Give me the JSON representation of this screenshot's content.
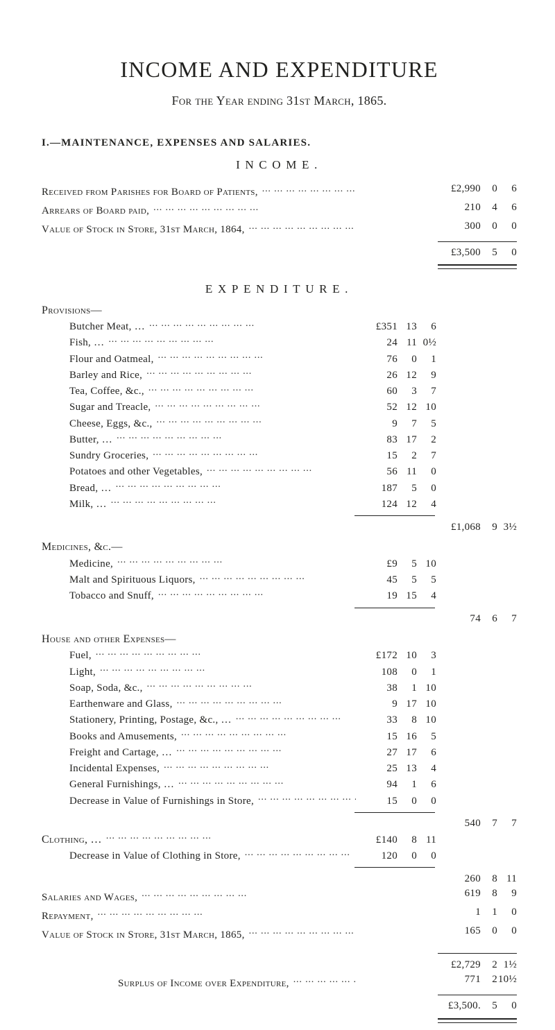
{
  "title": "INCOME AND EXPENDITURE",
  "subtitle": "For the Year ending 31st March, 1865.",
  "section1": "I.—MAINTENANCE, EXPENSES AND SALARIES.",
  "income_head": "INCOME.",
  "expenditure_head": "EXPENDITURE.",
  "income_rows": [
    {
      "label": "Received from Parishes for Board of Patients,",
      "p2": "£2,990",
      "s2": "0",
      "d2": "6"
    },
    {
      "label": "Arrears of Board paid,",
      "p2": "210",
      "s2": "4",
      "d2": "6"
    },
    {
      "label": "Value of Stock in Store, 31st March, 1864,",
      "p2": "300",
      "s2": "0",
      "d2": "0"
    }
  ],
  "income_total": {
    "p2": "£3,500",
    "s2": "5",
    "d2": "0"
  },
  "prov_head": "Provisions—",
  "provisions": [
    {
      "label": "Butcher Meat, …",
      "p1": "£351",
      "s1": "13",
      "d1": "6"
    },
    {
      "label": "Fish, …",
      "p1": "24",
      "s1": "11",
      "d1": "0½"
    },
    {
      "label": "Flour and Oatmeal,",
      "p1": "76",
      "s1": "0",
      "d1": "1"
    },
    {
      "label": "Barley and Rice,",
      "p1": "26",
      "s1": "12",
      "d1": "9"
    },
    {
      "label": "Tea, Coffee, &c.,",
      "p1": "60",
      "s1": "3",
      "d1": "7"
    },
    {
      "label": "Sugar and Treacle,",
      "p1": "52",
      "s1": "12",
      "d1": "10"
    },
    {
      "label": "Cheese, Eggs, &c.,",
      "p1": "9",
      "s1": "7",
      "d1": "5"
    },
    {
      "label": "Butter, …",
      "p1": "83",
      "s1": "17",
      "d1": "2"
    },
    {
      "label": "Sundry Groceries,",
      "p1": "15",
      "s1": "2",
      "d1": "7"
    },
    {
      "label": "Potatoes and other Vegetables,",
      "p1": "56",
      "s1": "11",
      "d1": "0"
    },
    {
      "label": "Bread, …",
      "p1": "187",
      "s1": "5",
      "d1": "0"
    },
    {
      "label": "Milk, …",
      "p1": "124",
      "s1": "12",
      "d1": "4"
    }
  ],
  "provisions_total": {
    "p2": "£1,068",
    "s2": "9",
    "d2": "3½"
  },
  "med_head": "Medicines, &c.—",
  "medicines": [
    {
      "label": "Medicine,",
      "p1": "£9",
      "s1": "5",
      "d1": "10"
    },
    {
      "label": "Malt and Spirituous Liquors,",
      "p1": "45",
      "s1": "5",
      "d1": "5"
    },
    {
      "label": "Tobacco and Snuff,",
      "p1": "19",
      "s1": "15",
      "d1": "4"
    }
  ],
  "medicines_total": {
    "p2": "74",
    "s2": "6",
    "d2": "7"
  },
  "house_head": "House and other Expenses—",
  "house": [
    {
      "label": "Fuel,",
      "p1": "£172",
      "s1": "10",
      "d1": "3"
    },
    {
      "label": "Light,",
      "p1": "108",
      "s1": "0",
      "d1": "1"
    },
    {
      "label": "Soap, Soda, &c.,",
      "p1": "38",
      "s1": "1",
      "d1": "10"
    },
    {
      "label": "Earthenware and Glass,",
      "p1": "9",
      "s1": "17",
      "d1": "10"
    },
    {
      "label": "Stationery, Printing, Postage, &c., …",
      "p1": "33",
      "s1": "8",
      "d1": "10"
    },
    {
      "label": "Books and Amusements,",
      "p1": "15",
      "s1": "16",
      "d1": "5"
    },
    {
      "label": "Freight and Cartage, …",
      "p1": "27",
      "s1": "17",
      "d1": "6"
    },
    {
      "label": "Incidental Expenses,",
      "p1": "25",
      "s1": "13",
      "d1": "4"
    },
    {
      "label": "General Furnishings, …",
      "p1": "94",
      "s1": "1",
      "d1": "6"
    },
    {
      "label": "Decrease in Value of Furnishings in Store,",
      "p1": "15",
      "s1": "0",
      "d1": "0"
    }
  ],
  "house_total": {
    "p2": "540",
    "s2": "7",
    "d2": "7"
  },
  "clothing_head": "Clothing, …",
  "clothing": [
    {
      "label": "",
      "p1": "£140",
      "s1": "8",
      "d1": "11"
    },
    {
      "label": "Decrease in Value of Clothing in Store,",
      "p1": "120",
      "s1": "0",
      "d1": "0"
    }
  ],
  "clothing_total": {
    "p2": "260",
    "s2": "8",
    "d2": "11"
  },
  "tail_rows": [
    {
      "label": "Salaries and Wages,",
      "p2": "619",
      "s2": "8",
      "d2": "9"
    },
    {
      "label": "Repayment,",
      "p2": "1",
      "s2": "1",
      "d2": "0"
    },
    {
      "label": "Value of Stock in Store, 31st March, 1865,",
      "p2": "165",
      "s2": "0",
      "d2": "0"
    }
  ],
  "grand1": {
    "p2": "£2,729",
    "s2": "2",
    "d2": "1½"
  },
  "surplus_label": "Surplus of Income over Expenditure,",
  "surplus": {
    "p2": "771",
    "s2": "2",
    "d2": "10½"
  },
  "grand2": {
    "p2": "£3,500.",
    "s2": "5",
    "d2": "0"
  }
}
